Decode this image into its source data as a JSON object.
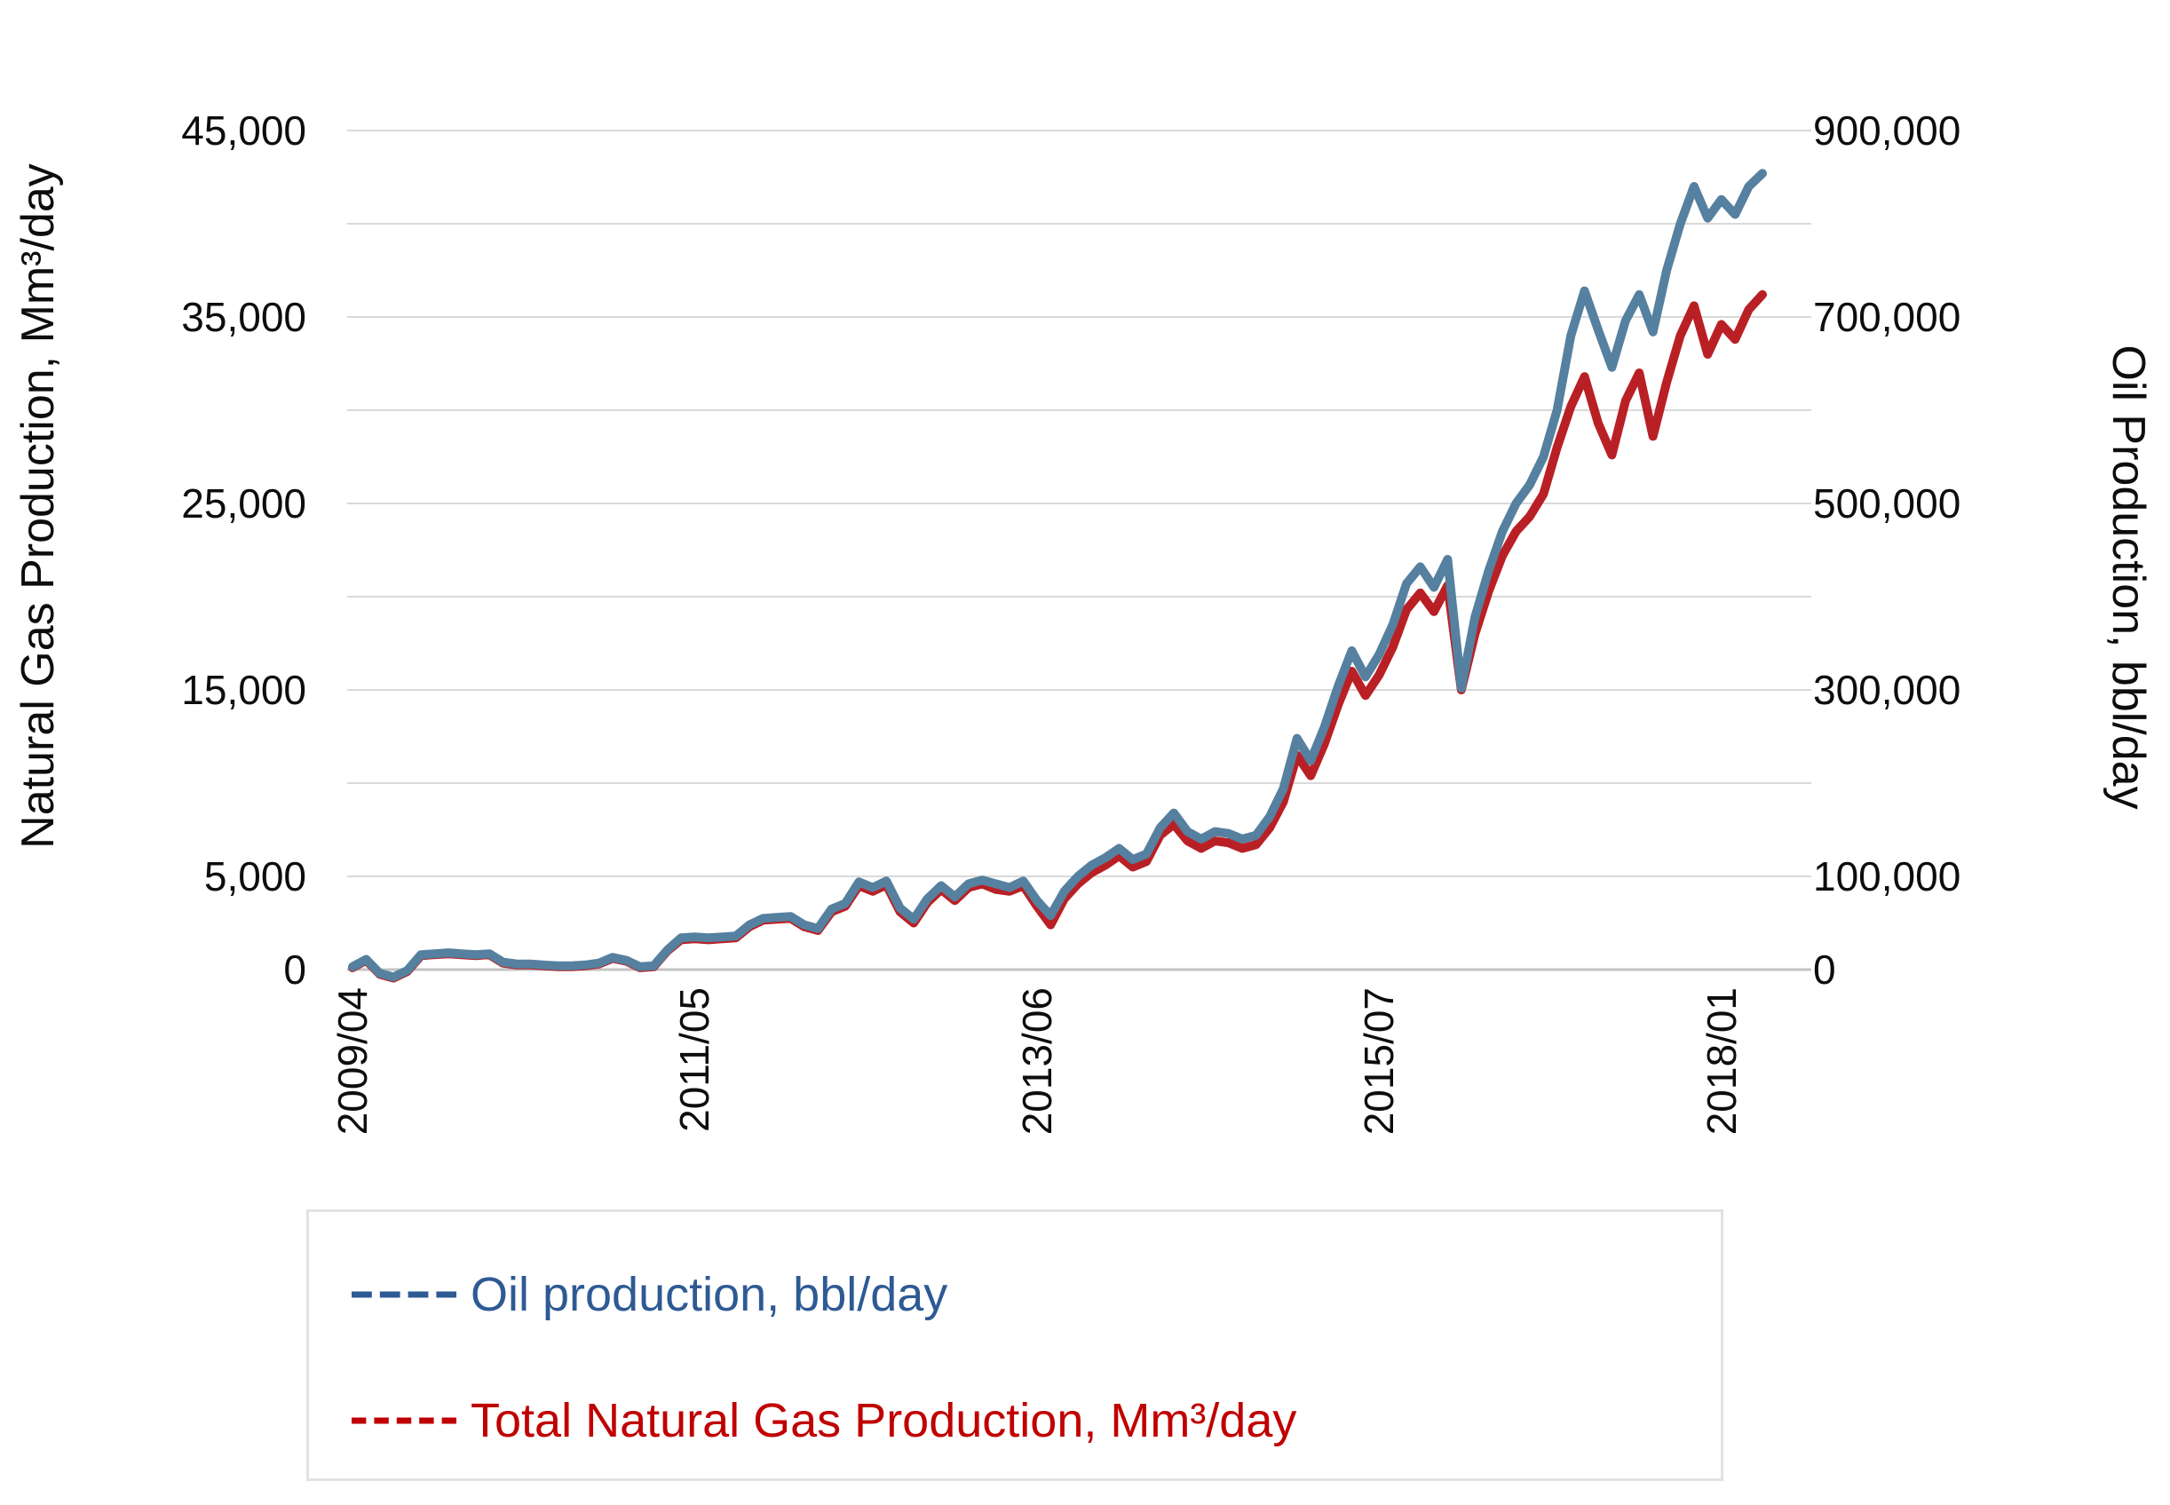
{
  "chart_data": {
    "type": "line",
    "title": "",
    "grid": true,
    "legend_position": "bottom",
    "x_axis": {
      "tick_labels": [
        "2009/04",
        "2011/05",
        "2013/06",
        "2015/07",
        "2018/01"
      ],
      "tick_indices": [
        0,
        25,
        50,
        75,
        100
      ],
      "num_points": 104
    },
    "left_axis": {
      "label": "Natural Gas Production, Mm³/day",
      "min": 0,
      "max": 45000,
      "gridline_interval": 5000,
      "tick_labels": [
        "45,000",
        "35,000",
        "25,000",
        "15,000",
        "5,000",
        "0"
      ],
      "tick_values": [
        45000,
        35000,
        25000,
        15000,
        5000,
        0
      ]
    },
    "right_axis": {
      "label": "Oil Production, bbl/day",
      "min": 0,
      "max": 900000,
      "tick_labels": [
        "900,000",
        "700,000",
        "500,000",
        "300,000",
        "100,000",
        "0"
      ],
      "tick_values": [
        900000,
        700000,
        500000,
        300000,
        100000,
        0
      ]
    },
    "series": [
      {
        "name": "Oil production, bbl/day",
        "axis": "right",
        "color": "#56809f",
        "line_width": 10,
        "values": [
          3000,
          11000,
          -4000,
          -8000,
          -1000,
          16000,
          17000,
          18000,
          17000,
          16000,
          17000,
          8000,
          6000,
          6000,
          5000,
          4000,
          4000,
          5000,
          7000,
          13000,
          10000,
          3000,
          4000,
          21000,
          34000,
          35000,
          34000,
          35000,
          36000,
          48000,
          55000,
          56000,
          57000,
          48000,
          44000,
          65000,
          71000,
          94000,
          88000,
          95000,
          66000,
          54000,
          76000,
          90000,
          78000,
          92000,
          96000,
          92000,
          88000,
          95000,
          74000,
          58000,
          84000,
          100000,
          112000,
          120000,
          130000,
          118000,
          124000,
          152000,
          168000,
          148000,
          140000,
          148000,
          146000,
          140000,
          144000,
          164000,
          194000,
          248000,
          224000,
          260000,
          304000,
          342000,
          314000,
          338000,
          370000,
          414000,
          432000,
          410000,
          440000,
          302000,
          378000,
          428000,
          470000,
          500000,
          520000,
          550000,
          600000,
          680000,
          728000,
          686000,
          646000,
          696000,
          724000,
          684000,
          750000,
          800000,
          840000,
          806000,
          826000,
          810000,
          840000,
          854000
        ]
      },
      {
        "name": "Total Natural Gas Production, Mm³/day",
        "axis": "left",
        "color": "#b92025",
        "line_width": 10,
        "values": [
          100,
          500,
          -250,
          -450,
          -100,
          750,
          800,
          850,
          800,
          750,
          800,
          350,
          250,
          250,
          200,
          150,
          150,
          200,
          300,
          600,
          450,
          100,
          150,
          1000,
          1600,
          1650,
          1600,
          1650,
          1700,
          2300,
          2650,
          2700,
          2750,
          2300,
          2100,
          3100,
          3400,
          4500,
          4200,
          4550,
          3100,
          2500,
          3600,
          4300,
          3700,
          4400,
          4600,
          4300,
          4200,
          4500,
          3400,
          2400,
          3800,
          4600,
          5200,
          5600,
          6100,
          5500,
          5800,
          7200,
          7800,
          6900,
          6500,
          6900,
          6800,
          6500,
          6700,
          7600,
          9000,
          11500,
          10400,
          12100,
          14200,
          16000,
          14700,
          15800,
          17300,
          19300,
          20200,
          19200,
          20600,
          15000,
          18000,
          20300,
          22200,
          23500,
          24300,
          25500,
          28000,
          30200,
          31800,
          29300,
          27600,
          30500,
          32000,
          28600,
          31500,
          34000,
          35600,
          33000,
          34600,
          33800,
          35400,
          36200
        ]
      }
    ],
    "legend": {
      "items": [
        {
          "label": "Oil production, bbl/day",
          "color": "#2e5a94",
          "dashes": 4
        },
        {
          "label": "Total Natural Gas Production, Mm³/day",
          "color": "#c00000",
          "dashes": 5
        }
      ]
    },
    "colors": {
      "gridline": "#d9d9d9",
      "baseline": "#c3c3c3",
      "legend_border": "#e2e2e2",
      "tick_text": "#0d0d0d"
    }
  }
}
